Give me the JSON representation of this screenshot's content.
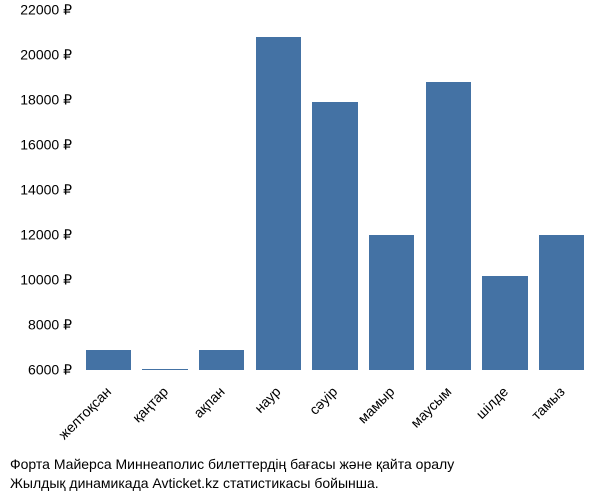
{
  "chart": {
    "type": "bar",
    "categories": [
      "желтоқсан",
      "қаңтар",
      "ақпан",
      "наур",
      "сәуір",
      "мамыр",
      "маусым",
      "шілде",
      "тамыз"
    ],
    "values": [
      6900,
      6050,
      6900,
      20800,
      17900,
      12000,
      18800,
      10200,
      12000
    ],
    "bar_color": "#4472a4",
    "y_min": 6000,
    "y_max": 22000,
    "y_tick_step": 2000,
    "y_ticks": [
      "6000 ₽",
      "8000 ₽",
      "10000 ₽",
      "12000 ₽",
      "14000 ₽",
      "16000 ₽",
      "18000 ₽",
      "20000 ₽",
      "22000 ₽"
    ],
    "y_tick_values": [
      6000,
      8000,
      10000,
      12000,
      14000,
      16000,
      18000,
      20000,
      22000
    ],
    "background_color": "#ffffff",
    "bar_width_ratio": 0.8,
    "label_fontsize": 14,
    "tick_fontsize": 14,
    "x_label_rotation": -45
  },
  "caption": {
    "line1": "Форта Майерса Миннеаполис билеттердің бағасы және қайта оралу",
    "line2": "Жылдық динамикада Avticket.kz статистикасы бойынша."
  }
}
